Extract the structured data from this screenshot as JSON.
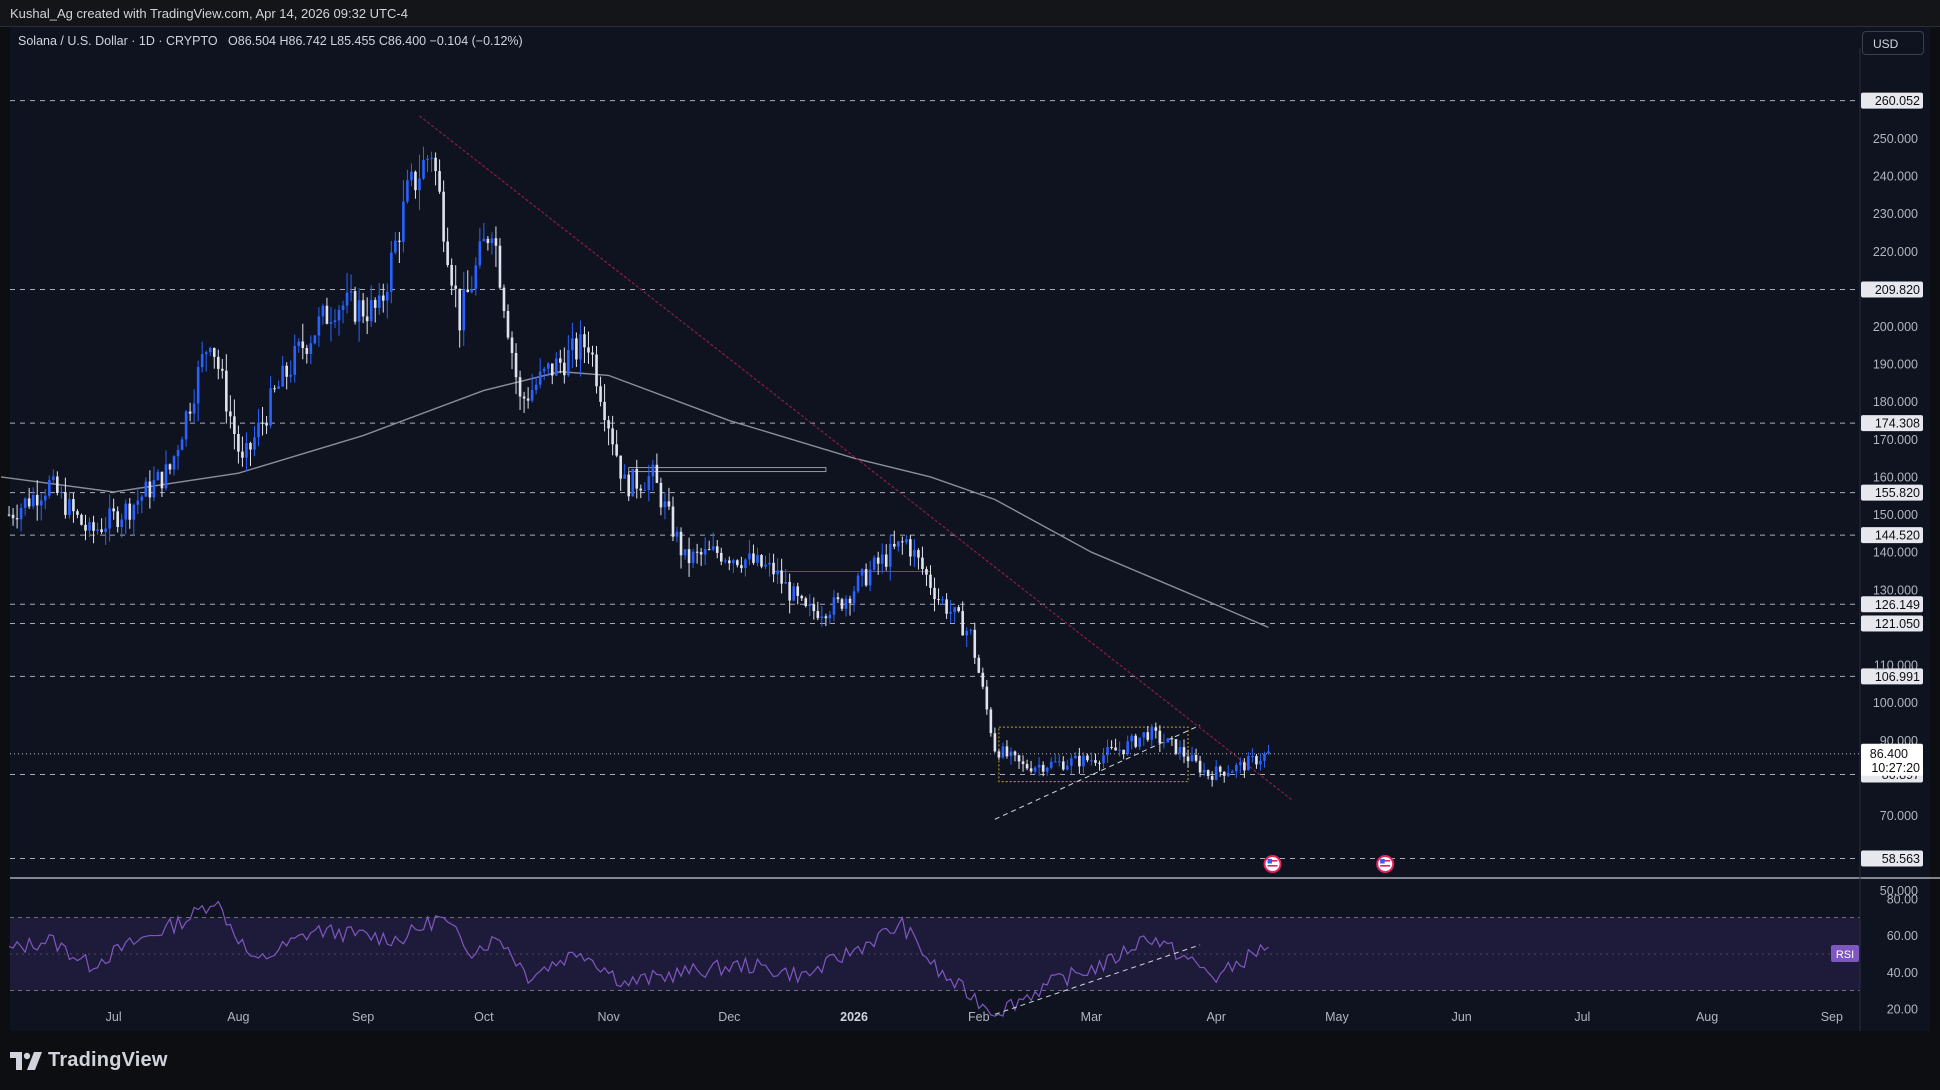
{
  "header": {
    "credit": "Kushal_Ag created with TradingView.com, Apr 14, 2026 09:32 UTC-4",
    "symbol": "Solana / U.S. Dollar · 1D · CRYPTO",
    "ohlc": "O86.504  H86.742  L85.455  C86.400  −0.104 (−0.12%)",
    "currency_button": "USD"
  },
  "footer": {
    "logo_text": "TradingView",
    "logo_icon": "tradingview-logo-icon"
  },
  "colors": {
    "background": "#0f1320",
    "up": "#2962ff",
    "down": "#e0e3eb",
    "sma": "#8a8d96",
    "trendline": "#8b1e3f",
    "rsi": "#7e57c2",
    "rsi_band": "#1e1b3a"
  },
  "chart_data": [
    {
      "type": "candlestick",
      "title": "Solana / U.S. Dollar · 1D · CRYPTO",
      "y_axis_ticks": [
        "250.000",
        "240.000",
        "230.000",
        "220.000",
        "200.000",
        "190.000",
        "180.000",
        "170.000",
        "160.000",
        "150.000",
        "140.000",
        "130.000",
        "110.000",
        "100.000",
        "90.000",
        "70.000",
        "50.000"
      ],
      "x_axis_ticks": [
        "Jul",
        "Aug",
        "Sep",
        "Oct",
        "Nov",
        "Dec",
        "2026",
        "Feb",
        "Mar",
        "Apr",
        "May",
        "Jun",
        "Jul",
        "Aug",
        "Sep"
      ],
      "x_axis_dates": [
        "2025-07-01",
        "2025-08-01",
        "2025-09-01",
        "2025-10-01",
        "2025-11-01",
        "2025-12-01",
        "2026-01-01",
        "2026-02-01",
        "2026-03-01",
        "2026-04-01",
        "2026-05-01",
        "2026-06-01",
        "2026-07-01",
        "2026-08-01",
        "2026-09-01"
      ],
      "ylim": [
        47,
        265
      ],
      "date_range": [
        "2025-06-03",
        "2026-09-08"
      ],
      "horizontal_levels": [
        "260.052",
        "209.820",
        "174.308",
        "155.820",
        "144.520",
        "126.149",
        "121.050",
        "106.991",
        "80.897",
        "58.563"
      ],
      "last_price": "86.400",
      "countdown": "10:27:20",
      "closes": [
        {
          "d": "2025-06-05",
          "c": 150
        },
        {
          "d": "2025-06-15",
          "c": 158
        },
        {
          "d": "2025-06-25",
          "c": 145
        },
        {
          "d": "2025-07-05",
          "c": 152
        },
        {
          "d": "2025-07-15",
          "c": 162
        },
        {
          "d": "2025-07-25",
          "c": 198
        },
        {
          "d": "2025-08-02",
          "c": 163
        },
        {
          "d": "2025-08-10",
          "c": 182
        },
        {
          "d": "2025-08-17",
          "c": 195
        },
        {
          "d": "2025-08-25",
          "c": 206
        },
        {
          "d": "2025-09-05",
          "c": 204
        },
        {
          "d": "2025-09-12",
          "c": 235
        },
        {
          "d": "2025-09-18",
          "c": 247
        },
        {
          "d": "2025-09-25",
          "c": 202
        },
        {
          "d": "2025-10-03",
          "c": 228
        },
        {
          "d": "2025-10-10",
          "c": 180
        },
        {
          "d": "2025-10-17",
          "c": 188
        },
        {
          "d": "2025-10-27",
          "c": 196
        },
        {
          "d": "2025-11-05",
          "c": 158
        },
        {
          "d": "2025-11-12",
          "c": 160
        },
        {
          "d": "2025-11-20",
          "c": 138
        },
        {
          "d": "2025-11-28",
          "c": 140
        },
        {
          "d": "2025-12-05",
          "c": 138
        },
        {
          "d": "2025-12-12",
          "c": 135
        },
        {
          "d": "2025-12-20",
          "c": 124
        },
        {
          "d": "2025-12-28",
          "c": 126
        },
        {
          "d": "2026-01-06",
          "c": 136
        },
        {
          "d": "2026-01-14",
          "c": 143
        },
        {
          "d": "2026-01-22",
          "c": 128
        },
        {
          "d": "2026-01-30",
          "c": 118
        },
        {
          "d": "2026-02-05",
          "c": 88
        },
        {
          "d": "2026-02-12",
          "c": 83
        },
        {
          "d": "2026-02-22",
          "c": 84
        },
        {
          "d": "2026-03-01",
          "c": 85
        },
        {
          "d": "2026-03-09",
          "c": 88
        },
        {
          "d": "2026-03-15",
          "c": 92
        },
        {
          "d": "2026-03-22",
          "c": 88
        },
        {
          "d": "2026-03-30",
          "c": 81
        },
        {
          "d": "2026-04-07",
          "c": 83
        },
        {
          "d": "2026-04-14",
          "c": 86.4
        }
      ],
      "sma_series": [
        {
          "d": "2025-06-03",
          "v": 160
        },
        {
          "d": "2025-07-01",
          "v": 156
        },
        {
          "d": "2025-08-01",
          "v": 161
        },
        {
          "d": "2025-09-01",
          "v": 171
        },
        {
          "d": "2025-10-01",
          "v": 183
        },
        {
          "d": "2025-10-20",
          "v": 188
        },
        {
          "d": "2025-11-01",
          "v": 187
        },
        {
          "d": "2025-12-01",
          "v": 175
        },
        {
          "d": "2026-01-01",
          "v": 165
        },
        {
          "d": "2026-01-20",
          "v": 160
        },
        {
          "d": "2026-02-05",
          "v": 154
        },
        {
          "d": "2026-03-01",
          "v": 140
        },
        {
          "d": "2026-04-01",
          "v": 126
        },
        {
          "d": "2026-04-14",
          "v": 120
        }
      ]
    },
    {
      "type": "line",
      "title": "RSI",
      "label": "RSI",
      "y_axis_ticks": [
        "80.00",
        "60.00",
        "40.00",
        "20.00"
      ],
      "ylim": [
        15,
        85
      ],
      "band": [
        30,
        70
      ],
      "midline": 50,
      "values": [
        {
          "d": "2025-06-05",
          "v": 52
        },
        {
          "d": "2025-06-15",
          "v": 58
        },
        {
          "d": "2025-06-25",
          "v": 44
        },
        {
          "d": "2025-07-05",
          "v": 55
        },
        {
          "d": "2025-07-20",
          "v": 70
        },
        {
          "d": "2025-07-26",
          "v": 80
        },
        {
          "d": "2025-08-05",
          "v": 45
        },
        {
          "d": "2025-08-20",
          "v": 63
        },
        {
          "d": "2025-09-10",
          "v": 58
        },
        {
          "d": "2025-09-20",
          "v": 70
        },
        {
          "d": "2025-09-28",
          "v": 52
        },
        {
          "d": "2025-10-05",
          "v": 59
        },
        {
          "d": "2025-10-12",
          "v": 38
        },
        {
          "d": "2025-10-25",
          "v": 52
        },
        {
          "d": "2025-11-05",
          "v": 34
        },
        {
          "d": "2025-11-20",
          "v": 40
        },
        {
          "d": "2025-12-05",
          "v": 44
        },
        {
          "d": "2025-12-20",
          "v": 38
        },
        {
          "d": "2026-01-06",
          "v": 58
        },
        {
          "d": "2026-01-13",
          "v": 66
        },
        {
          "d": "2026-01-22",
          "v": 40
        },
        {
          "d": "2026-02-05",
          "v": 18
        },
        {
          "d": "2026-02-20",
          "v": 35
        },
        {
          "d": "2026-03-05",
          "v": 45
        },
        {
          "d": "2026-03-15",
          "v": 60
        },
        {
          "d": "2026-03-25",
          "v": 47
        },
        {
          "d": "2026-04-01",
          "v": 37
        },
        {
          "d": "2026-04-08",
          "v": 47
        },
        {
          "d": "2026-04-14",
          "v": 55
        }
      ]
    }
  ]
}
